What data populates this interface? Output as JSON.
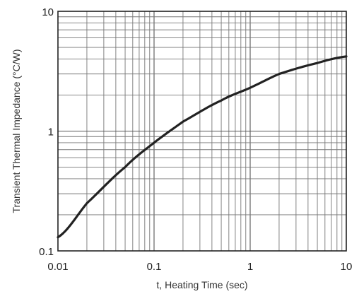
{
  "chart_data": {
    "type": "line",
    "xlabel": "t, Heating Time (sec)",
    "ylabel": "Transient Thermal Impedance (°C/W)",
    "x_scale": "log",
    "y_scale": "log",
    "xlim": [
      0.01,
      10
    ],
    "ylim": [
      0.1,
      10
    ],
    "x_ticks": [
      "0.01",
      "0.1",
      "1",
      "10"
    ],
    "y_ticks": [
      "0.1",
      "1",
      "10"
    ],
    "grid": true,
    "legend": "none",
    "series": [
      {
        "x": [
          0.01,
          0.02,
          0.05,
          0.1,
          0.2,
          0.5,
          1,
          2,
          5,
          10
        ],
        "y": [
          0.13,
          0.25,
          0.5,
          0.8,
          1.2,
          1.8,
          2.3,
          3.0,
          3.7,
          4.2
        ]
      }
    ]
  }
}
